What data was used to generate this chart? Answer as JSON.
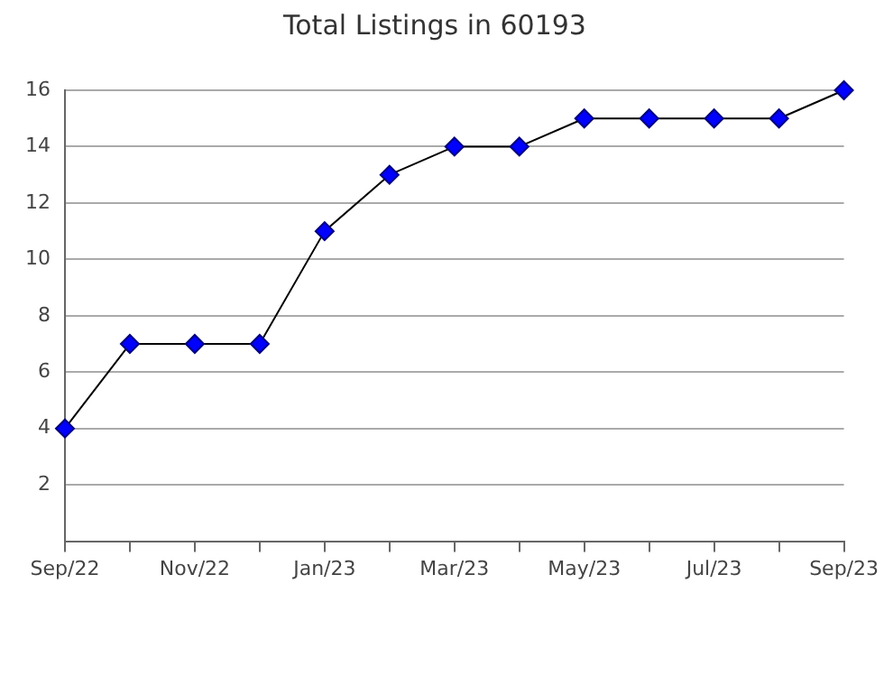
{
  "chart_data": {
    "type": "line",
    "title": "Total Listings in 60193",
    "categories": [
      "Sep/22",
      null,
      "Nov/22",
      null,
      "Jan/23",
      null,
      "Mar/23",
      null,
      "May/23",
      null,
      "Jul/23",
      null,
      "Sep/23"
    ],
    "series": [
      {
        "color": "#0000ff",
        "values": [
          4,
          7,
          7,
          7,
          11,
          13,
          14,
          14,
          15,
          15,
          15,
          15,
          16
        ]
      }
    ],
    "ylim": [
      0,
      16
    ],
    "yticks": [
      2,
      4,
      6,
      8,
      10,
      12,
      14,
      16
    ],
    "grid": "y",
    "legend": false,
    "marker": "diamond",
    "line_style": "solid"
  }
}
